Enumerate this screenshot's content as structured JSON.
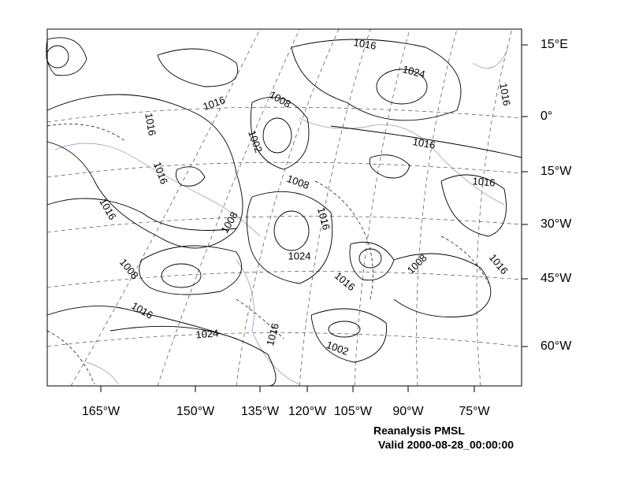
{
  "map": {
    "longitude_labels": [
      "165°W",
      "150°W",
      "135°W",
      "120°W",
      "105°W",
      "90°W",
      "75°W"
    ],
    "latitude_labels": [
      "15°E",
      "0°",
      "15°W",
      "30°W",
      "45°W",
      "60°W"
    ],
    "contour_labels": [
      "1016",
      "1024",
      "1016",
      "1008",
      "1016",
      "1016",
      "1002",
      "1016",
      "1016",
      "1008",
      "1016",
      "1016",
      "1016",
      "1008",
      "1024",
      "1008",
      "1016",
      "1008",
      "1016",
      "1016",
      "1024",
      "1016",
      "1002"
    ],
    "caption": [
      "Reanalysis PMSL",
      "Valid 2000-08-28_00:00:00"
    ]
  }
}
